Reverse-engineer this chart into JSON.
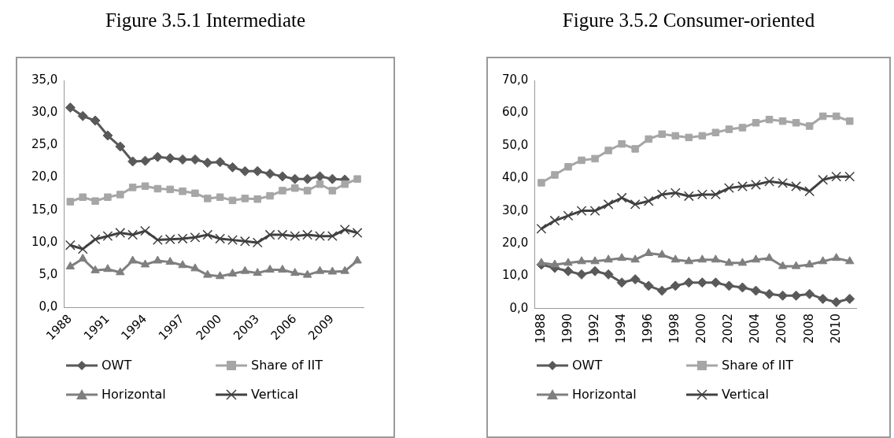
{
  "chart_data": [
    {
      "type": "line",
      "title": "Figure 3.5.1 Intermediate",
      "categories": [
        "1988",
        null,
        null,
        "1991",
        null,
        null,
        "1994",
        null,
        null,
        "1997",
        null,
        null,
        "2000",
        null,
        null,
        "2003",
        null,
        null,
        "2006",
        null,
        null,
        "2009",
        null,
        null
      ],
      "series": [
        {
          "name": "OWT",
          "color": "#595959",
          "marker": "diamond",
          "values": [
            30.8,
            29.5,
            28.8,
            26.5,
            24.8,
            22.5,
            22.6,
            23.2,
            23.0,
            22.8,
            22.8,
            22.3,
            22.4,
            21.6,
            21.0,
            21.0,
            20.6,
            20.2,
            19.8,
            19.8,
            20.2,
            19.8,
            19.7,
            null
          ]
        },
        {
          "name": "Share of IIT",
          "color": "#a6a6a6",
          "marker": "square",
          "values": [
            16.3,
            17.0,
            16.4,
            17.0,
            17.4,
            18.5,
            18.7,
            18.3,
            18.2,
            17.9,
            17.6,
            16.8,
            17.0,
            16.5,
            16.8,
            16.7,
            17.2,
            18.0,
            18.4,
            18.0,
            19.0,
            18.0,
            19.0,
            19.8
          ]
        },
        {
          "name": "Horizontal",
          "color": "#7f7f7f",
          "marker": "triangle",
          "values": [
            6.3,
            7.5,
            5.7,
            5.9,
            5.4,
            7.2,
            6.6,
            7.2,
            7.0,
            6.5,
            6.0,
            5.0,
            4.8,
            5.2,
            5.6,
            5.3,
            5.8,
            5.8,
            5.3,
            5.0,
            5.6,
            5.5,
            5.6,
            7.2
          ]
        },
        {
          "name": "Vertical",
          "color": "#404040",
          "marker": "cross",
          "values": [
            9.6,
            9.0,
            10.5,
            11.0,
            11.5,
            11.2,
            11.8,
            10.4,
            10.5,
            10.6,
            10.8,
            11.2,
            10.6,
            10.4,
            10.2,
            10.0,
            11.2,
            11.2,
            11.0,
            11.2,
            11.0,
            11.0,
            12.0,
            11.5
          ]
        }
      ],
      "ylim": [
        0,
        35
      ],
      "yticks": [
        {
          "value": 0,
          "label": "0,0"
        },
        {
          "value": 5,
          "label": "5,0"
        },
        {
          "value": 10,
          "label": "10,0"
        },
        {
          "value": 15,
          "label": "15,0"
        },
        {
          "value": 20,
          "label": "20,0"
        },
        {
          "value": 25,
          "label": "25,0"
        },
        {
          "value": 30,
          "label": "30,0"
        },
        {
          "value": 35,
          "label": "35,0"
        }
      ],
      "grid": false,
      "legend": "bottom"
    },
    {
      "type": "line",
      "title": "Figure 3.5.2 Consumer-oriented",
      "categories": [
        "1988",
        null,
        "1990",
        null,
        "1992",
        null,
        "1994",
        null,
        "1996",
        null,
        "1998",
        null,
        "2000",
        null,
        "2002",
        null,
        "2004",
        null,
        "2006",
        null,
        "2008",
        null,
        "2010",
        null
      ],
      "series": [
        {
          "name": "OWT",
          "color": "#595959",
          "marker": "diamond",
          "values": [
            13.5,
            12.5,
            11.5,
            10.5,
            11.5,
            10.5,
            8,
            9,
            7,
            5.5,
            7,
            8,
            8,
            8,
            7,
            6.5,
            5.5,
            4.5,
            4,
            4,
            4.5,
            3,
            2,
            3
          ]
        },
        {
          "name": "Share of IIT",
          "color": "#a6a6a6",
          "marker": "square",
          "values": [
            38.6,
            41,
            43.5,
            45.5,
            46,
            48.5,
            50.5,
            49,
            52,
            53.5,
            53,
            52.5,
            53,
            54,
            55,
            55.5,
            57,
            58,
            57.5,
            57,
            56,
            59,
            59,
            57.5
          ]
        },
        {
          "name": "Horizontal",
          "color": "#7f7f7f",
          "marker": "triangle",
          "values": [
            14,
            13.5,
            14,
            14.5,
            14.5,
            15,
            15.5,
            15,
            17,
            16.5,
            15,
            14.5,
            15,
            15,
            14,
            14,
            15,
            15.5,
            13,
            13,
            13.5,
            14.5,
            15.5,
            14.5
          ]
        },
        {
          "name": "Vertical",
          "color": "#404040",
          "marker": "cross",
          "values": [
            24.5,
            27,
            28.5,
            30,
            30,
            32,
            34,
            32,
            33,
            35,
            35.5,
            34.5,
            35,
            35,
            37,
            37.5,
            38,
            39,
            38.5,
            37.5,
            36,
            39.5,
            40.5,
            40.5
          ]
        }
      ],
      "ylim": [
        0,
        70
      ],
      "yticks": [
        {
          "value": 0,
          "label": "0,0"
        },
        {
          "value": 10,
          "label": "10,0"
        },
        {
          "value": 20,
          "label": "20,0"
        },
        {
          "value": 30,
          "label": "30,0"
        },
        {
          "value": 40,
          "label": "40,0"
        },
        {
          "value": 50,
          "label": "50,0"
        },
        {
          "value": 60,
          "label": "60,0"
        },
        {
          "value": 70,
          "label": "70,0"
        }
      ],
      "grid": false,
      "legend": "bottom"
    }
  ]
}
